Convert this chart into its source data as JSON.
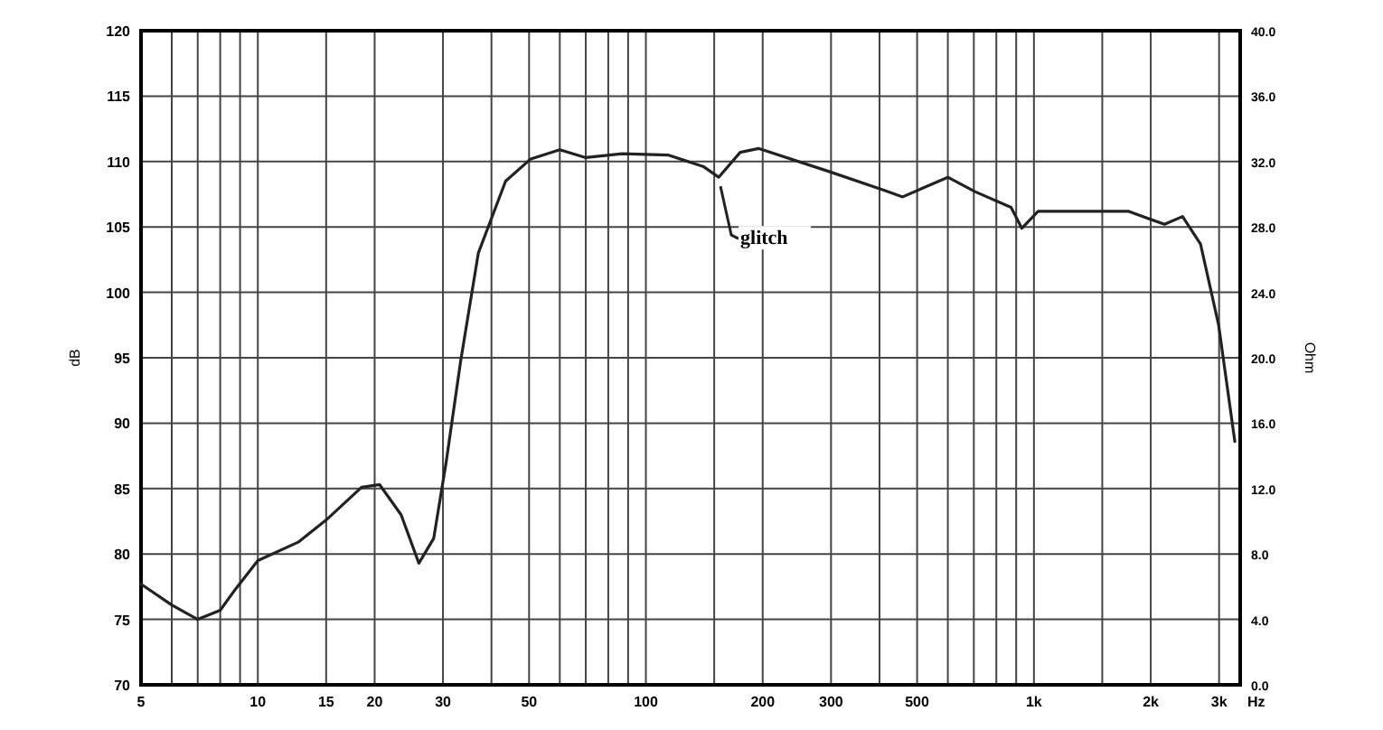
{
  "chart_data": {
    "type": "line",
    "xlabel": "Hz",
    "ylabel": "dB",
    "y2label": "Ohm",
    "log": "x",
    "grid": true,
    "marker": "none",
    "line_style": "solid",
    "xlim": [
      5,
      3400
    ],
    "ylim": [
      70,
      120
    ],
    "y2lim": [
      0,
      40
    ],
    "xticks": [
      5,
      {
        "value": 6,
        "label": null
      },
      {
        "value": 7,
        "label": null
      },
      {
        "value": 8,
        "label": null
      },
      {
        "value": 9,
        "label": null
      },
      10,
      15,
      20,
      30,
      {
        "value": 40,
        "label": null
      },
      50,
      {
        "value": 60,
        "label": null
      },
      {
        "value": 70,
        "label": null
      },
      {
        "value": 80,
        "label": null
      },
      {
        "value": 90,
        "label": null
      },
      100,
      {
        "value": 150,
        "label": null
      },
      200,
      300,
      {
        "value": 400,
        "label": null
      },
      500,
      {
        "value": 600,
        "label": null
      },
      {
        "value": 700,
        "label": null
      },
      {
        "value": 800,
        "label": null
      },
      {
        "value": 900,
        "label": null
      },
      {
        "value": 1000,
        "label": "1k"
      },
      {
        "value": 1500,
        "label": null
      },
      {
        "value": 2000,
        "label": "2k"
      },
      {
        "value": 3000,
        "label": "3k"
      }
    ],
    "yticks": [
      70,
      75,
      80,
      85,
      90,
      95,
      100,
      105,
      110,
      115,
      120
    ],
    "y2ticks": [
      {
        "value": 0,
        "label": "0.0"
      },
      {
        "value": 4,
        "label": "4.0"
      },
      {
        "value": 8,
        "label": "8.0"
      },
      {
        "value": 12,
        "label": "12.0"
      },
      {
        "value": 16,
        "label": "16.0"
      },
      {
        "value": 20,
        "label": "20.0"
      },
      {
        "value": 24,
        "label": "24.0"
      },
      {
        "value": 28,
        "label": "28.0"
      },
      {
        "value": 32,
        "label": "32.0"
      },
      {
        "value": 36,
        "label": "36.0"
      },
      {
        "value": 40,
        "label": "40.0"
      }
    ],
    "x": [
      5,
      6,
      7,
      8,
      8.7,
      10,
      12.7,
      15,
      18.5,
      20.6,
      23.4,
      26,
      28.4,
      30.6,
      33.3,
      37,
      43.5,
      50.5,
      60,
      70,
      87,
      114,
      141,
      154,
      175,
      195,
      299,
      412,
      459,
      600,
      705,
      873,
      931,
      1025,
      1750,
      2170,
      2415,
      2687,
      2992,
      3294
    ],
    "series": [
      {
        "color": "#222222",
        "values": [
          77.7,
          76.1,
          75.0,
          75.7,
          77.2,
          79.5,
          80.9,
          82.6,
          85.1,
          85.3,
          83.0,
          79.3,
          81.2,
          87.1,
          94.7,
          103.0,
          108.5,
          110.2,
          110.9,
          110.3,
          110.6,
          110.5,
          109.6,
          108.8,
          110.7,
          111.0,
          109.2,
          107.8,
          107.3,
          108.8,
          107.7,
          106.5,
          104.9,
          106.2,
          106.2,
          105.2,
          105.8,
          103.7,
          97.5,
          88.6
        ]
      }
    ],
    "annotations": [
      {
        "text": "glitch",
        "x": 154,
        "y": 108.8
      }
    ]
  }
}
